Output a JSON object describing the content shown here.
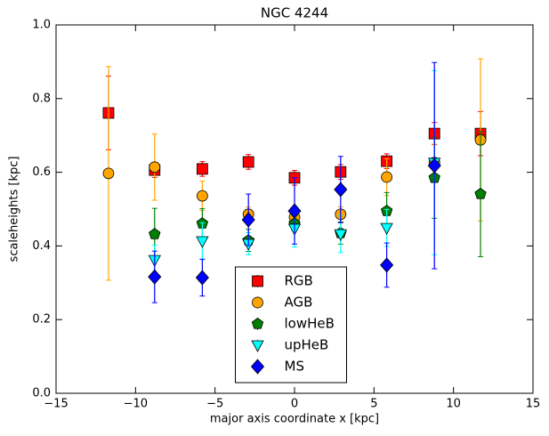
{
  "chart_data": {
    "type": "scatter",
    "title": "NGC 4244",
    "x_label": "major axis coordinate x [kpc]",
    "y_label": "scaleheights [kpc]",
    "x": [
      -11.7,
      -8.8,
      -5.8,
      -2.9,
      0.0,
      2.9,
      5.8,
      8.8,
      11.7
    ],
    "series": [
      {
        "name": "RGB",
        "color": "#ff0000",
        "marker": "square",
        "values": [
          0.761,
          0.606,
          0.609,
          0.628,
          0.585,
          0.601,
          0.63,
          0.705,
          0.705
        ],
        "errors": [
          0.1,
          0.02,
          0.02,
          0.02,
          0.02,
          0.02,
          0.02,
          0.03,
          0.06
        ]
      },
      {
        "name": "AGB",
        "color": "#ffa500",
        "marker": "circle",
        "values": [
          0.597,
          0.614,
          0.536,
          0.486,
          0.478,
          0.486,
          0.587,
          0.626,
          0.688
        ],
        "errors": [
          0.29,
          0.09,
          0.04,
          0.02,
          0.02,
          0.02,
          0.05,
          0.05,
          0.22
        ]
      },
      {
        "name": "lowHeB",
        "color": "#007f00",
        "marker": "pentagon",
        "values": [
          null,
          0.432,
          0.461,
          0.415,
          0.461,
          0.435,
          0.495,
          0.585,
          0.541
        ],
        "errors": [
          null,
          0.07,
          0.04,
          0.03,
          0.02,
          0.03,
          0.05,
          0.11,
          0.17
        ]
      },
      {
        "name": "upHeB",
        "color": "#00ffff",
        "marker": "triangle-down",
        "values": [
          null,
          0.362,
          0.413,
          0.406,
          0.447,
          0.432,
          0.449,
          0.626,
          null
        ],
        "errors": [
          null,
          0.04,
          0.05,
          0.03,
          0.05,
          0.05,
          0.05,
          0.25,
          null
        ]
      },
      {
        "name": "MS",
        "color": "#0000ff",
        "marker": "diamond",
        "values": [
          null,
          0.316,
          0.314,
          0.471,
          0.495,
          0.553,
          0.348,
          0.618,
          null
        ],
        "errors": [
          null,
          0.07,
          0.05,
          0.07,
          0.09,
          0.09,
          0.06,
          0.28,
          null
        ]
      }
    ],
    "xlim": [
      -15,
      15
    ],
    "xticks": [
      {
        "value": -15,
        "label": "−15"
      },
      {
        "value": -10,
        "label": "−10"
      },
      {
        "value": -5,
        "label": "−5"
      },
      0,
      5,
      10,
      15
    ],
    "ylim": [
      0,
      1
    ],
    "yticks": [
      {
        "value": 0,
        "label": "0.0"
      },
      0.2,
      0.4,
      0.6,
      0.8,
      {
        "value": 1,
        "label": "1.0"
      }
    ],
    "legend": "lower center",
    "grid": false
  }
}
